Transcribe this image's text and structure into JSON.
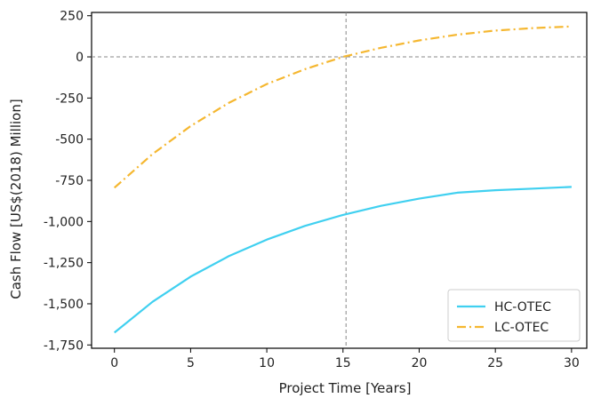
{
  "chart_data": {
    "type": "line",
    "title": "",
    "xlabel": "Project Time [Years]",
    "ylabel": "Cash Flow [US$(2018) Million]",
    "xlim": [
      -1.5,
      31
    ],
    "ylim": [
      -1770,
      270
    ],
    "x_ticks": [
      0,
      5,
      10,
      15,
      20,
      25,
      30
    ],
    "x_tick_labels": [
      "0",
      "5",
      "10",
      "15",
      "20",
      "25",
      "30"
    ],
    "y_ticks": [
      250,
      0,
      -250,
      -500,
      -750,
      -1000,
      -1250,
      -1500,
      -1750
    ],
    "y_tick_labels": [
      "250",
      "0",
      "-250",
      "-500",
      "-750",
      "-1,000",
      "-1,250",
      "-1,500",
      "-1,750"
    ],
    "reference_lines": {
      "horizontal_y": 0,
      "vertical_x": 15.2
    },
    "legend_position": "bottom-right",
    "x": [
      0,
      2.5,
      5,
      7.5,
      10,
      12.5,
      15,
      17.5,
      20,
      22.5,
      25,
      27.5,
      30
    ],
    "series": [
      {
        "name": "HC-OTEC",
        "color": "#40d0f0",
        "style": "solid",
        "values": [
          -1675,
          -1488,
          -1335,
          -1211,
          -1110,
          -1027,
          -960,
          -905,
          -861,
          -825,
          -810,
          -800,
          -790
        ]
      },
      {
        "name": "LC-OTEC",
        "color": "#f5b730",
        "style": "dashdot",
        "values": [
          -795,
          -590,
          -420,
          -280,
          -165,
          -75,
          0,
          55,
          100,
          135,
          160,
          175,
          185
        ]
      }
    ]
  }
}
